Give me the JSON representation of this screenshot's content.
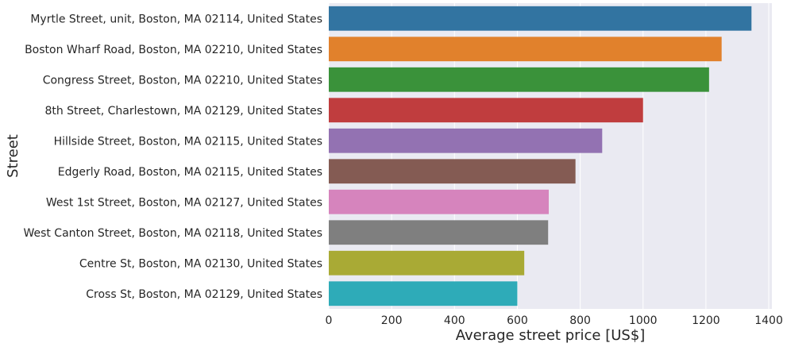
{
  "chart_data": {
    "type": "bar",
    "orientation": "horizontal",
    "categories": [
      "Myrtle Street, unit, Boston, MA 02114, United States",
      "Boston Wharf Road, Boston, MA 02210, United States",
      "Congress Street, Boston, MA 02210, United States",
      "8th Street, Charlestown, MA 02129, United States",
      "Hillside Street, Boston, MA 02115, United States",
      "Edgerly Road, Boston, MA 02115, United States",
      "West 1st Street, Boston, MA 02127, United States",
      "West Canton Street, Boston, MA 02118, United States",
      "Centre St, Boston, MA 02130, United States",
      "Cross St, Boston, MA 02129, United States"
    ],
    "values": [
      1345,
      1250,
      1210,
      1000,
      870,
      785,
      700,
      698,
      622,
      600
    ],
    "colors": [
      "#3274a1",
      "#e1812c",
      "#3a923a",
      "#c03d3e",
      "#9372b2",
      "#845b53",
      "#d684bd",
      "#7f7f7f",
      "#a9aa35",
      "#2eabb8"
    ],
    "xlabel": "Average street price [US$]",
    "ylabel": "Street",
    "xlim": [
      0,
      1410
    ],
    "xticks": [
      0,
      200,
      400,
      600,
      800,
      1000,
      1200,
      1400
    ],
    "grid": true,
    "background": "#eaeaf2",
    "gridColor": "#ffffff"
  }
}
